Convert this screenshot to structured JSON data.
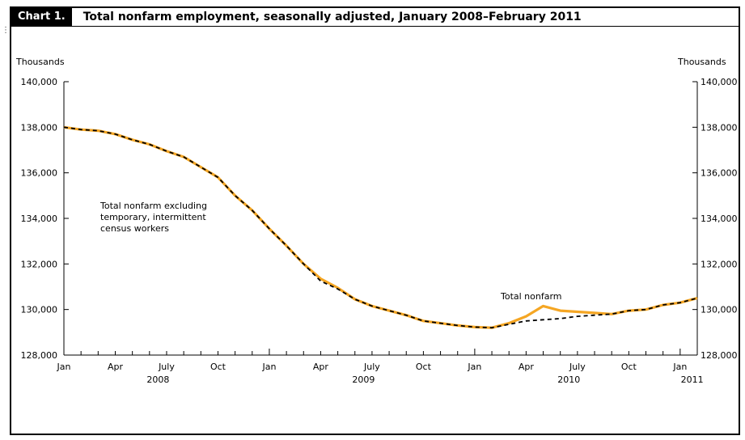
{
  "chart_label": "Chart 1.",
  "chart_title": "Total nonfarm employment, seasonally adjusted, January 2008–February 2011",
  "chart_data": {
    "type": "line",
    "title": "Total nonfarm employment, seasonally adjusted, January 2008–February 2011",
    "ylabel_left": "Thousands",
    "ylabel_right": "Thousands",
    "ylim": [
      128000,
      140000
    ],
    "yticks": [
      128000,
      130000,
      132000,
      134000,
      136000,
      138000,
      140000
    ],
    "ytick_labels": [
      "128,000",
      "130,000",
      "132,000",
      "134,000",
      "136,000",
      "138,000",
      "140,000"
    ],
    "x": [
      "2008-01",
      "2008-02",
      "2008-03",
      "2008-04",
      "2008-05",
      "2008-06",
      "2008-07",
      "2008-08",
      "2008-09",
      "2008-10",
      "2008-11",
      "2008-12",
      "2009-01",
      "2009-02",
      "2009-03",
      "2009-04",
      "2009-05",
      "2009-06",
      "2009-07",
      "2009-08",
      "2009-09",
      "2009-10",
      "2009-11",
      "2009-12",
      "2010-01",
      "2010-02",
      "2010-03",
      "2010-04",
      "2010-05",
      "2010-06",
      "2010-07",
      "2010-08",
      "2010-09",
      "2010-10",
      "2010-11",
      "2010-12",
      "2011-01",
      "2011-02"
    ],
    "xtick_month_labels": [
      "Jan",
      "Apr",
      "July",
      "Oct",
      "Jan",
      "Apr",
      "July",
      "Oct",
      "Jan",
      "Apr",
      "July",
      "Oct",
      "Jan"
    ],
    "xtick_year_labels": [
      "2008",
      "2009",
      "2010",
      "2011"
    ],
    "series": [
      {
        "name": "Total nonfarm",
        "color": "#f5a623",
        "style": "solid",
        "values": [
          138000,
          137900,
          137850,
          137700,
          137450,
          137250,
          136950,
          136700,
          136250,
          135800,
          135000,
          134350,
          133550,
          132800,
          132000,
          131350,
          130950,
          130450,
          130150,
          129950,
          129750,
          129500,
          129400,
          129300,
          129230,
          129200,
          129400,
          129700,
          130150,
          129950,
          129900,
          129850,
          129800,
          129950,
          130000,
          130200,
          130300,
          130500
        ]
      },
      {
        "name": "Total nonfarm excluding temporary, intermittent census workers",
        "color": "#000000",
        "style": "dashed",
        "values": [
          138000,
          137900,
          137850,
          137700,
          137450,
          137250,
          136950,
          136700,
          136250,
          135800,
          135000,
          134350,
          133550,
          132800,
          132000,
          131250,
          130900,
          130450,
          130150,
          129950,
          129750,
          129500,
          129400,
          129300,
          129230,
          129200,
          129350,
          129500,
          129550,
          129600,
          129700,
          129750,
          129800,
          129950,
          130000,
          130200,
          130300,
          130500
        ]
      }
    ],
    "annotations": [
      {
        "lines": [
          "Total nonfarm excluding",
          "temporary, intermittent",
          "census workers"
        ]
      },
      {
        "lines": [
          "Total nonfarm"
        ]
      }
    ],
    "grid": false
  }
}
